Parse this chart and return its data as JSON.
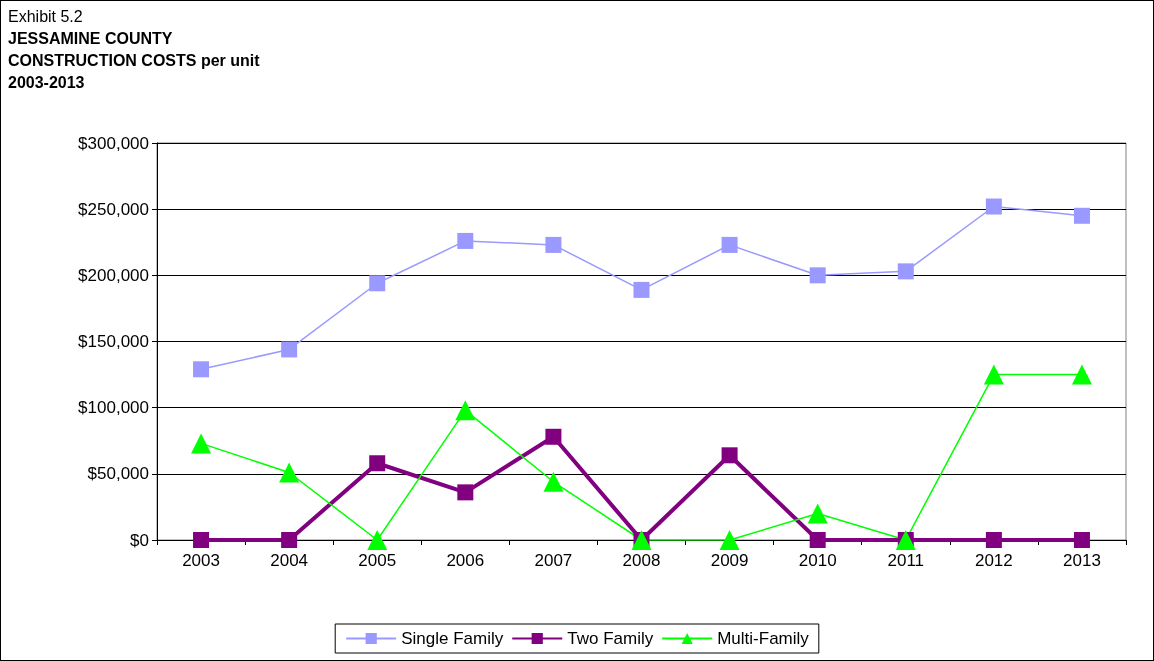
{
  "chart_data": {
    "type": "line",
    "annotations": [
      "Exhibit 5.2"
    ],
    "title": "JESSAMINE COUNTY\nCONSTRUCTION COSTS per unit",
    "subtitle": "2003-2013",
    "categories": [
      "2003",
      "2004",
      "2005",
      "2006",
      "2007",
      "2008",
      "2009",
      "2010",
      "2011",
      "2012",
      "2013"
    ],
    "series": [
      {
        "name": "Single Family",
        "color": "#9999ff",
        "marker": "square",
        "values": [
          129000,
          144000,
          194000,
          226000,
          223000,
          189000,
          223000,
          200000,
          203000,
          252000,
          245000
        ]
      },
      {
        "name": "Two Family",
        "color": "#800080",
        "marker": "square",
        "values": [
          0,
          0,
          58000,
          36000,
          78000,
          0,
          64000,
          0,
          0,
          0,
          0
        ]
      },
      {
        "name": "Multi-Family",
        "color": "#00ff00",
        "marker": "triangle",
        "values": [
          73000,
          51000,
          0,
          98000,
          44000,
          0,
          0,
          20000,
          0,
          125000,
          125000
        ]
      }
    ],
    "ylim": [
      0,
      300000
    ],
    "yticks": [
      {
        "value": 0,
        "label": "$0"
      },
      {
        "value": 50000,
        "label": "$50,000"
      },
      {
        "value": 100000,
        "label": "$100,000"
      },
      {
        "value": 150000,
        "label": "$150,000"
      },
      {
        "value": 200000,
        "label": "$200,000"
      },
      {
        "value": 250000,
        "label": "$250,000"
      },
      {
        "value": 300000,
        "label": "$300,000"
      }
    ],
    "grid": "y",
    "legend": "bottom"
  }
}
